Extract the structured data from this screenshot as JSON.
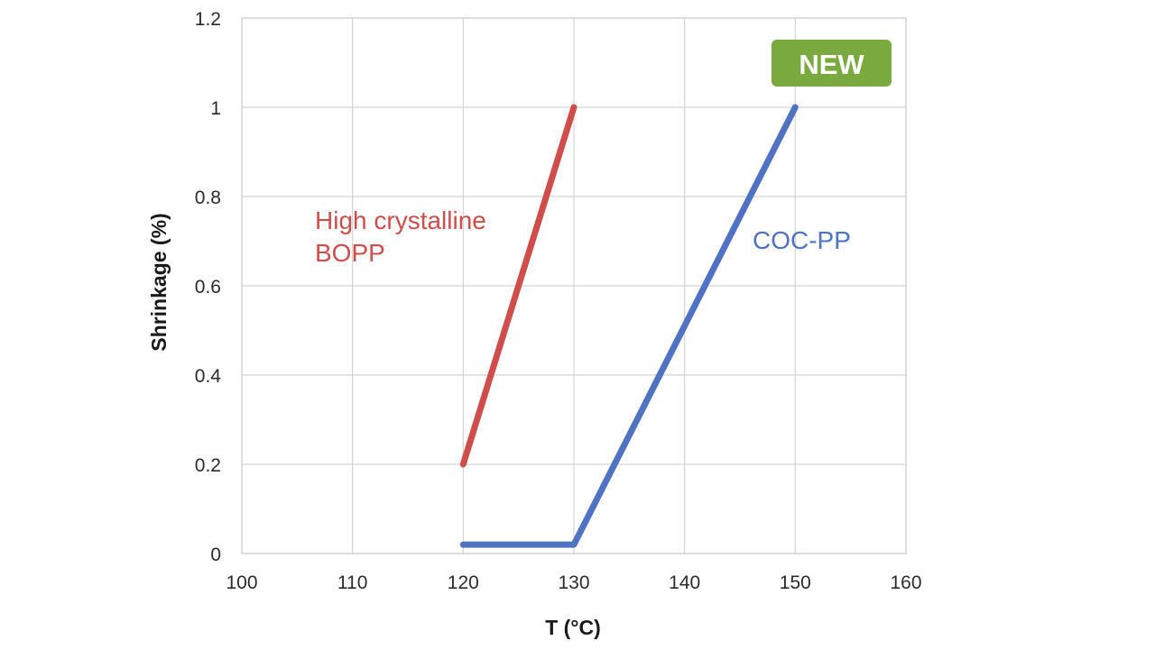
{
  "chart_data": {
    "type": "line",
    "xlabel": "T (°C)",
    "ylabel": "Shrinkage (%)",
    "xlim": [
      100,
      160
    ],
    "ylim": [
      0,
      1.2
    ],
    "x_ticks": [
      100,
      110,
      120,
      130,
      140,
      150,
      160
    ],
    "y_ticks": [
      0,
      0.2,
      0.4,
      0.6,
      0.8,
      1,
      1.2
    ],
    "grid": true,
    "series": [
      {
        "name": "High crystalline BOPP",
        "color": "#cf4e4c",
        "points": [
          [
            120,
            0.2
          ],
          [
            130,
            1.0
          ]
        ]
      },
      {
        "name": "COC-PP",
        "color": "#4f73c2",
        "points": [
          [
            120,
            0.02
          ],
          [
            130,
            0.02
          ],
          [
            150,
            1.0
          ]
        ]
      }
    ],
    "series_labels": [
      {
        "lines": [
          "High crystalline",
          "BOPP"
        ],
        "color": "#cf4e4c"
      },
      {
        "lines": [
          "COC-PP"
        ],
        "color": "#4f73c2"
      }
    ],
    "badge": {
      "text": "NEW",
      "color": "#7aaa3f"
    }
  }
}
